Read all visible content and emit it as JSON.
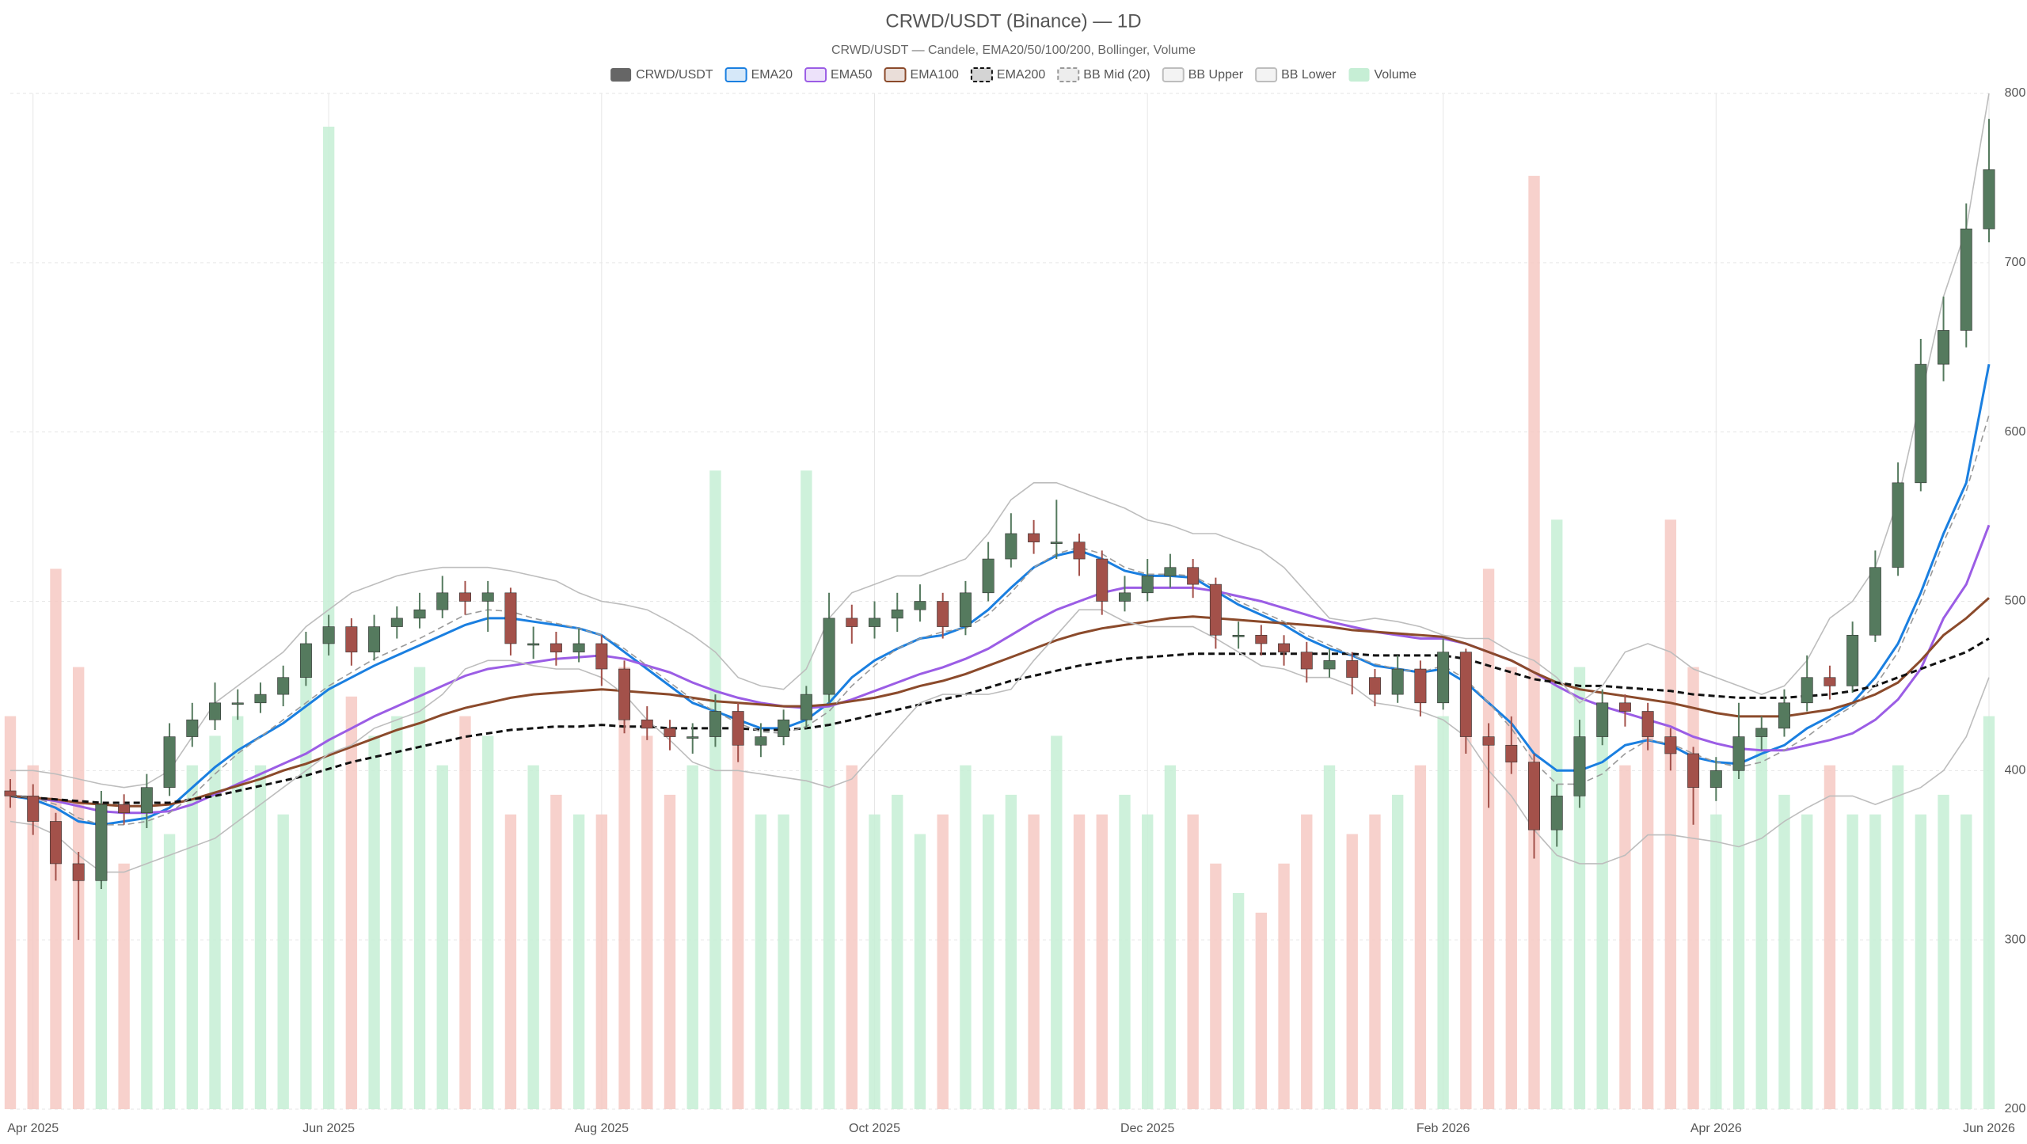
{
  "chart_data": {
    "type": "candlestick",
    "title": "CRWD/USDT (Binance) — 1D",
    "subtitle": "CRWD/USDT — Candele, EMA20/50/100/200, Bollinger, Volume",
    "categories": [
      null,
      "Apr 2025",
      null,
      null,
      null,
      null,
      null,
      null,
      null,
      null,
      null,
      null,
      null,
      null,
      "Jun 2025",
      null,
      null,
      null,
      null,
      null,
      null,
      null,
      null,
      null,
      null,
      null,
      "Aug 2025",
      null,
      null,
      null,
      null,
      null,
      null,
      null,
      null,
      null,
      null,
      null,
      "Oct 2025",
      null,
      null,
      null,
      null,
      null,
      null,
      null,
      null,
      null,
      null,
      null,
      "Dec 2025",
      null,
      null,
      null,
      null,
      null,
      null,
      null,
      null,
      null,
      null,
      null,
      null,
      "Feb 2026",
      null,
      null,
      null,
      null,
      null,
      null,
      null,
      null,
      null,
      null,
      null,
      "Apr 2026",
      null,
      null,
      null,
      null,
      null,
      null,
      null,
      null,
      null,
      null,
      null,
      "Jun 2026"
    ],
    "ylim": [
      200,
      800
    ],
    "yticks": [
      200,
      300,
      400,
      500,
      600,
      700,
      800
    ],
    "grid": true,
    "series": [
      {
        "name": "CRWD/USDT",
        "color": "#666666",
        "up_color": "#557a5e",
        "down_color": "#a3514a",
        "open": [
          388,
          385,
          370,
          345,
          335,
          380,
          375,
          390,
          420,
          430,
          440,
          440,
          445,
          455,
          475,
          485,
          470,
          485,
          490,
          495,
          505,
          500,
          505,
          475,
          475,
          470,
          475,
          460,
          430,
          425,
          420,
          420,
          435,
          415,
          420,
          430,
          445,
          490,
          485,
          490,
          495,
          500,
          485,
          505,
          525,
          540,
          535,
          535,
          525,
          500,
          505,
          515,
          520,
          510,
          480,
          480,
          475,
          470,
          460,
          465,
          455,
          445,
          460,
          440,
          470,
          420,
          415,
          405,
          365,
          385,
          420,
          440,
          435,
          420,
          410,
          390,
          400,
          420,
          425,
          440,
          455,
          450,
          480,
          520,
          570,
          640,
          660,
          720
        ],
        "high": [
          395,
          392,
          375,
          352,
          388,
          386,
          398,
          428,
          440,
          452,
          448,
          452,
          462,
          482,
          492,
          490,
          492,
          497,
          505,
          515,
          512,
          512,
          508,
          485,
          482,
          484,
          480,
          465,
          438,
          430,
          428,
          445,
          440,
          428,
          436,
          450,
          505,
          498,
          500,
          505,
          510,
          505,
          512,
          535,
          552,
          548,
          560,
          540,
          530,
          515,
          525,
          528,
          525,
          514,
          488,
          486,
          480,
          476,
          472,
          470,
          460,
          468,
          465,
          478,
          472,
          428,
          432,
          410,
          392,
          430,
          448,
          445,
          440,
          425,
          414,
          408,
          440,
          432,
          448,
          468,
          462,
          488,
          530,
          582,
          655,
          680,
          735,
          785
        ],
        "low": [
          378,
          362,
          335,
          300,
          330,
          368,
          366,
          385,
          414,
          424,
          430,
          434,
          438,
          450,
          468,
          462,
          465,
          478,
          484,
          490,
          492,
          482,
          468,
          466,
          462,
          464,
          450,
          422,
          418,
          412,
          410,
          414,
          405,
          408,
          415,
          425,
          440,
          475,
          478,
          482,
          488,
          478,
          480,
          500,
          520,
          528,
          525,
          515,
          492,
          494,
          500,
          508,
          502,
          472,
          472,
          468,
          462,
          452,
          455,
          445,
          438,
          440,
          432,
          436,
          410,
          378,
          398,
          348,
          355,
          378,
          415,
          426,
          412,
          400,
          368,
          382,
          395,
          412,
          420,
          435,
          442,
          446,
          476,
          515,
          565,
          630,
          650,
          712
        ],
        "close": [
          385,
          370,
          345,
          335,
          380,
          375,
          390,
          420,
          430,
          440,
          440,
          445,
          455,
          475,
          485,
          470,
          485,
          490,
          495,
          505,
          500,
          505,
          475,
          475,
          470,
          475,
          460,
          430,
          425,
          420,
          420,
          435,
          415,
          420,
          430,
          445,
          490,
          485,
          490,
          495,
          500,
          485,
          505,
          525,
          540,
          535,
          535,
          525,
          500,
          505,
          515,
          520,
          510,
          480,
          480,
          475,
          470,
          460,
          465,
          455,
          445,
          460,
          440,
          470,
          420,
          415,
          405,
          365,
          385,
          420,
          440,
          435,
          420,
          410,
          390,
          400,
          420,
          425,
          440,
          455,
          450,
          480,
          520,
          570,
          640,
          660,
          720,
          755
        ]
      },
      {
        "name": "EMA20",
        "color": "#1a7fe0",
        "values": [
          385,
          383,
          378,
          370,
          368,
          370,
          372,
          378,
          390,
          402,
          412,
          420,
          428,
          438,
          448,
          455,
          462,
          468,
          474,
          480,
          486,
          490,
          490,
          488,
          486,
          484,
          480,
          470,
          460,
          450,
          440,
          435,
          430,
          425,
          425,
          430,
          440,
          455,
          465,
          472,
          478,
          480,
          485,
          495,
          508,
          520,
          527,
          530,
          525,
          518,
          515,
          515,
          514,
          506,
          498,
          492,
          486,
          478,
          472,
          468,
          462,
          460,
          458,
          460,
          452,
          440,
          428,
          410,
          400,
          400,
          405,
          415,
          418,
          415,
          408,
          405,
          404,
          410,
          415,
          425,
          432,
          440,
          455,
          475,
          505,
          540,
          570,
          640
        ]
      },
      {
        "name": "EMA50",
        "color": "#9b5de5",
        "values": [
          385,
          384,
          382,
          379,
          376,
          375,
          375,
          376,
          380,
          386,
          392,
          398,
          404,
          410,
          418,
          425,
          432,
          438,
          444,
          450,
          456,
          460,
          462,
          464,
          466,
          467,
          468,
          466,
          462,
          458,
          452,
          447,
          443,
          440,
          438,
          437,
          438,
          442,
          447,
          452,
          457,
          461,
          466,
          472,
          480,
          488,
          495,
          500,
          505,
          508,
          508,
          508,
          508,
          506,
          503,
          500,
          496,
          492,
          488,
          485,
          482,
          480,
          478,
          478,
          475,
          470,
          465,
          458,
          450,
          443,
          438,
          434,
          430,
          426,
          420,
          416,
          413,
          412,
          412,
          415,
          418,
          422,
          430,
          442,
          460,
          490,
          510,
          545
        ]
      },
      {
        "name": "EMA100",
        "color": "#8b4a2b",
        "values": [
          385,
          384,
          383,
          381,
          380,
          379,
          379,
          380,
          383,
          387,
          391,
          395,
          400,
          404,
          409,
          414,
          419,
          424,
          428,
          433,
          437,
          440,
          443,
          445,
          446,
          447,
          448,
          447,
          446,
          445,
          443,
          441,
          440,
          439,
          438,
          438,
          439,
          441,
          443,
          446,
          450,
          453,
          457,
          462,
          467,
          472,
          477,
          481,
          484,
          486,
          488,
          490,
          491,
          490,
          489,
          488,
          487,
          486,
          485,
          483,
          482,
          481,
          480,
          479,
          475,
          470,
          465,
          458,
          452,
          448,
          446,
          444,
          442,
          440,
          437,
          434,
          432,
          432,
          432,
          434,
          436,
          440,
          445,
          452,
          465,
          480,
          490,
          502
        ]
      },
      {
        "name": "EMA200",
        "color": "#111111",
        "dash": true,
        "values": [
          385,
          384,
          383,
          382,
          381,
          381,
          381,
          381,
          383,
          385,
          388,
          391,
          394,
          397,
          401,
          405,
          408,
          411,
          414,
          417,
          420,
          422,
          424,
          425,
          426,
          426,
          427,
          426,
          426,
          425,
          425,
          425,
          425,
          424,
          424,
          425,
          427,
          430,
          433,
          436,
          439,
          442,
          445,
          449,
          453,
          456,
          459,
          462,
          464,
          466,
          467,
          468,
          469,
          469,
          469,
          469,
          469,
          469,
          469,
          469,
          468,
          468,
          468,
          468,
          466,
          462,
          458,
          454,
          452,
          450,
          450,
          449,
          448,
          447,
          445,
          444,
          443,
          443,
          443,
          444,
          445,
          447,
          450,
          455,
          460,
          465,
          470,
          478
        ]
      },
      {
        "name": "BB Mid (20)",
        "color": "#9a9a9a",
        "dash": true,
        "values": [
          385,
          384,
          380,
          372,
          368,
          368,
          370,
          375,
          385,
          398,
          410,
          420,
          430,
          440,
          450,
          458,
          466,
          472,
          478,
          485,
          492,
          495,
          494,
          490,
          487,
          484,
          480,
          472,
          462,
          452,
          442,
          435,
          428,
          423,
          422,
          426,
          435,
          450,
          462,
          472,
          478,
          482,
          484,
          492,
          505,
          520,
          528,
          532,
          528,
          520,
          516,
          516,
          515,
          508,
          500,
          494,
          488,
          480,
          474,
          468,
          463,
          460,
          458,
          462,
          454,
          440,
          425,
          405,
          392,
          392,
          398,
          410,
          418,
          416,
          410,
          405,
          402,
          405,
          412,
          420,
          430,
          438,
          450,
          470,
          500,
          535,
          565,
          610
        ]
      },
      {
        "name": "BB Upper",
        "color": "#bdbdbd",
        "values": [
          400,
          400,
          398,
          395,
          392,
          390,
          392,
          400,
          420,
          440,
          450,
          460,
          470,
          485,
          495,
          505,
          510,
          515,
          518,
          520,
          520,
          520,
          518,
          515,
          512,
          505,
          500,
          498,
          495,
          488,
          480,
          470,
          455,
          450,
          448,
          460,
          490,
          505,
          510,
          515,
          515,
          520,
          525,
          540,
          560,
          570,
          570,
          565,
          560,
          555,
          548,
          545,
          540,
          540,
          535,
          530,
          520,
          505,
          490,
          488,
          490,
          488,
          485,
          480,
          478,
          478,
          470,
          465,
          455,
          440,
          450,
          470,
          475,
          470,
          460,
          455,
          450,
          445,
          450,
          465,
          490,
          500,
          520,
          560,
          620,
          680,
          720,
          800
        ]
      },
      {
        "name": "BB Lower",
        "color": "#bdbdbd",
        "values": [
          370,
          368,
          362,
          350,
          340,
          340,
          345,
          350,
          355,
          360,
          370,
          380,
          390,
          400,
          410,
          415,
          425,
          430,
          435,
          445,
          460,
          465,
          465,
          462,
          460,
          460,
          455,
          445,
          430,
          418,
          405,
          400,
          400,
          398,
          396,
          394,
          390,
          395,
          410,
          425,
          440,
          445,
          445,
          445,
          448,
          465,
          480,
          495,
          495,
          488,
          485,
          485,
          485,
          478,
          470,
          462,
          460,
          455,
          455,
          450,
          440,
          438,
          435,
          430,
          420,
          400,
          385,
          365,
          350,
          345,
          345,
          350,
          362,
          362,
          360,
          358,
          355,
          360,
          370,
          378,
          385,
          385,
          380,
          385,
          390,
          400,
          420,
          455
        ]
      },
      {
        "name": "Volume",
        "color": "#c6eed5",
        "down_color": "#f6c9c3",
        "values": [
          40,
          35,
          55,
          45,
          30,
          25,
          30,
          28,
          35,
          38,
          40,
          35,
          30,
          45,
          100,
          42,
          38,
          40,
          45,
          35,
          40,
          38,
          30,
          35,
          32,
          30,
          30,
          45,
          38,
          32,
          35,
          65,
          40,
          30,
          30,
          65,
          50,
          35,
          30,
          32,
          28,
          30,
          35,
          30,
          32,
          30,
          38,
          30,
          30,
          32,
          30,
          35,
          30,
          25,
          22,
          20,
          25,
          30,
          35,
          28,
          30,
          32,
          35,
          40,
          45,
          55,
          45,
          95,
          60,
          45,
          38,
          35,
          40,
          60,
          45,
          30,
          35,
          38,
          32,
          30,
          35,
          30,
          30,
          35,
          30,
          32,
          30,
          40
        ]
      }
    ]
  }
}
